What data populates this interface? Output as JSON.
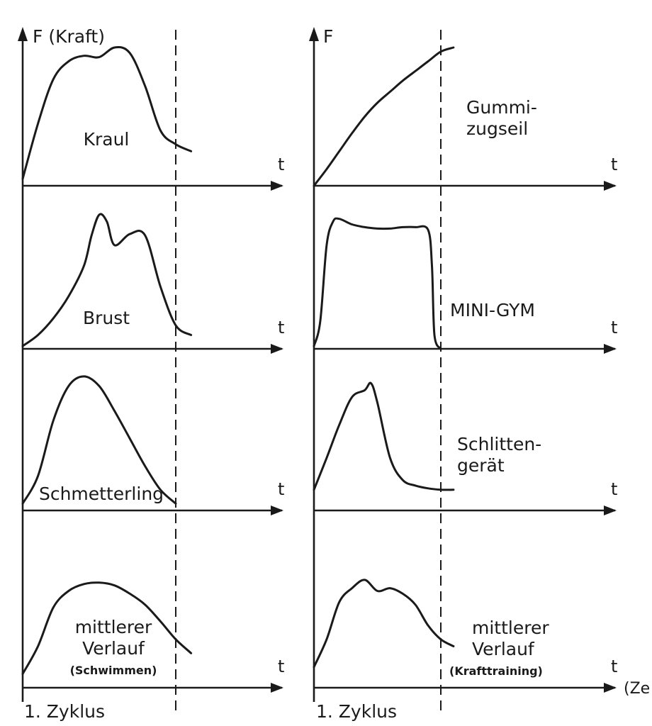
{
  "chart_data": {
    "type": "line",
    "y_axis_label_left": "F (Kraft)",
    "y_axis_label_right": "F",
    "x_axis_symbol": "t",
    "x_axis_title_right": "(Ze",
    "cycle_label_left": "1. Zyklus",
    "cycle_label_right": "1. Zyklus",
    "x_range": [
      0,
      1.1
    ],
    "y_range": [
      0,
      1
    ],
    "cycle_end_x": 1.0,
    "panels": [
      {
        "id": "kraul",
        "column": 0,
        "row": 0,
        "label": [
          "Kraul"
        ],
        "x": [
          0,
          0.1,
          0.2,
          0.3,
          0.4,
          0.5,
          0.6,
          0.7,
          0.8,
          0.9,
          1.0,
          1.1
        ],
        "y": [
          0.05,
          0.45,
          0.77,
          0.9,
          0.94,
          0.93,
          1.0,
          0.96,
          0.72,
          0.4,
          0.3,
          0.25
        ]
      },
      {
        "id": "brust",
        "column": 0,
        "row": 1,
        "label": [
          "Brust"
        ],
        "x": [
          0,
          0.1,
          0.2,
          0.3,
          0.4,
          0.45,
          0.5,
          0.55,
          0.6,
          0.7,
          0.8,
          0.9,
          1.0,
          1.1
        ],
        "y": [
          0.02,
          0.1,
          0.22,
          0.38,
          0.6,
          0.82,
          0.97,
          0.92,
          0.75,
          0.83,
          0.82,
          0.45,
          0.17,
          0.1
        ]
      },
      {
        "id": "schmetterling",
        "column": 0,
        "row": 2,
        "label": [
          "Schmetterling"
        ],
        "x": [
          0,
          0.1,
          0.2,
          0.3,
          0.4,
          0.5,
          0.6,
          0.7,
          0.8,
          0.9,
          1.0
        ],
        "y": [
          0.05,
          0.25,
          0.65,
          0.9,
          0.97,
          0.9,
          0.72,
          0.52,
          0.32,
          0.15,
          0.05
        ]
      },
      {
        "id": "mittlerer-verlauf-schwimmen",
        "column": 0,
        "row": 3,
        "label": [
          "mittlerer",
          "Verlauf"
        ],
        "sublabel": "(Schwimmen)",
        "x": [
          0,
          0.1,
          0.2,
          0.3,
          0.4,
          0.5,
          0.6,
          0.7,
          0.8,
          0.9,
          1.0,
          1.1
        ],
        "y": [
          0.1,
          0.3,
          0.58,
          0.7,
          0.75,
          0.76,
          0.74,
          0.68,
          0.6,
          0.48,
          0.35,
          0.25
        ]
      },
      {
        "id": "gummizugseil",
        "column": 1,
        "row": 0,
        "label": [
          "Gummi-",
          "zugseil"
        ],
        "x": [
          0,
          0.1,
          0.2,
          0.3,
          0.4,
          0.5,
          0.6,
          0.7,
          0.8,
          0.9,
          1.0,
          1.1
        ],
        "y": [
          0.0,
          0.12,
          0.25,
          0.38,
          0.5,
          0.6,
          0.68,
          0.76,
          0.83,
          0.9,
          0.97,
          1.0
        ]
      },
      {
        "id": "mini-gym",
        "column": 1,
        "row": 1,
        "label": [
          "MINI-GYM"
        ],
        "x": [
          0,
          0.05,
          0.1,
          0.15,
          0.2,
          0.3,
          0.4,
          0.5,
          0.6,
          0.7,
          0.8,
          0.9,
          0.93,
          0.95,
          1.0
        ],
        "y": [
          0.02,
          0.2,
          0.75,
          0.92,
          0.94,
          0.9,
          0.88,
          0.87,
          0.87,
          0.88,
          0.88,
          0.86,
          0.6,
          0.1,
          0.0
        ]
      },
      {
        "id": "schlittengeraet",
        "column": 1,
        "row": 2,
        "label": [
          "Schlitten-",
          "gerät"
        ],
        "x": [
          0,
          0.1,
          0.2,
          0.3,
          0.4,
          0.45,
          0.5,
          0.6,
          0.7,
          0.8,
          0.9,
          1.0,
          1.1
        ],
        "y": [
          0.15,
          0.38,
          0.62,
          0.82,
          0.87,
          0.92,
          0.78,
          0.38,
          0.22,
          0.18,
          0.16,
          0.15,
          0.15
        ]
      },
      {
        "id": "mittlerer-verlauf-krafttraining",
        "column": 1,
        "row": 3,
        "label": [
          "mittlerer",
          "Verlauf"
        ],
        "sublabel": "(Krafttraining)",
        "x": [
          0,
          0.1,
          0.2,
          0.3,
          0.4,
          0.5,
          0.6,
          0.7,
          0.8,
          0.9,
          1.0,
          1.1
        ],
        "y": [
          0.15,
          0.35,
          0.62,
          0.72,
          0.78,
          0.7,
          0.72,
          0.68,
          0.6,
          0.45,
          0.35,
          0.3
        ]
      }
    ]
  }
}
